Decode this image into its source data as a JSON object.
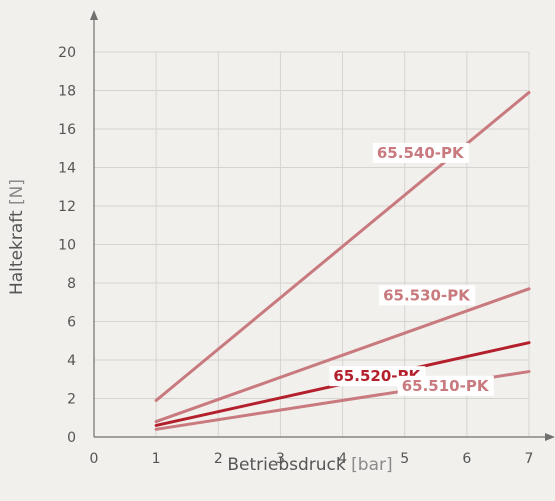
{
  "chart_data": {
    "type": "line",
    "xlabel": "Betriebsdruck",
    "xlabel_unit": "[bar]",
    "ylabel": "Haltekraft",
    "ylabel_unit": "[N]",
    "xlim": [
      0,
      7
    ],
    "ylim": [
      0,
      20
    ],
    "x_ticks": [
      0,
      1,
      2,
      3,
      4,
      5,
      6,
      7
    ],
    "y_ticks": [
      0,
      2,
      4,
      6,
      8,
      10,
      12,
      14,
      16,
      18,
      20
    ],
    "grid": true,
    "series": [
      {
        "name": "65.540-PK",
        "color": "#c97a7e",
        "x": [
          1,
          7
        ],
        "y": [
          1.9,
          17.9
        ]
      },
      {
        "name": "65.530-PK",
        "color": "#c97a7e",
        "x": [
          1,
          7
        ],
        "y": [
          0.8,
          7.7
        ]
      },
      {
        "name": "65.520-PK",
        "color": "#b3202c",
        "x": [
          1,
          7
        ],
        "y": [
          0.6,
          4.9
        ]
      },
      {
        "name": "65.510-PK",
        "color": "#c97a7e",
        "x": [
          1,
          7
        ],
        "y": [
          0.4,
          3.4
        ]
      }
    ]
  }
}
